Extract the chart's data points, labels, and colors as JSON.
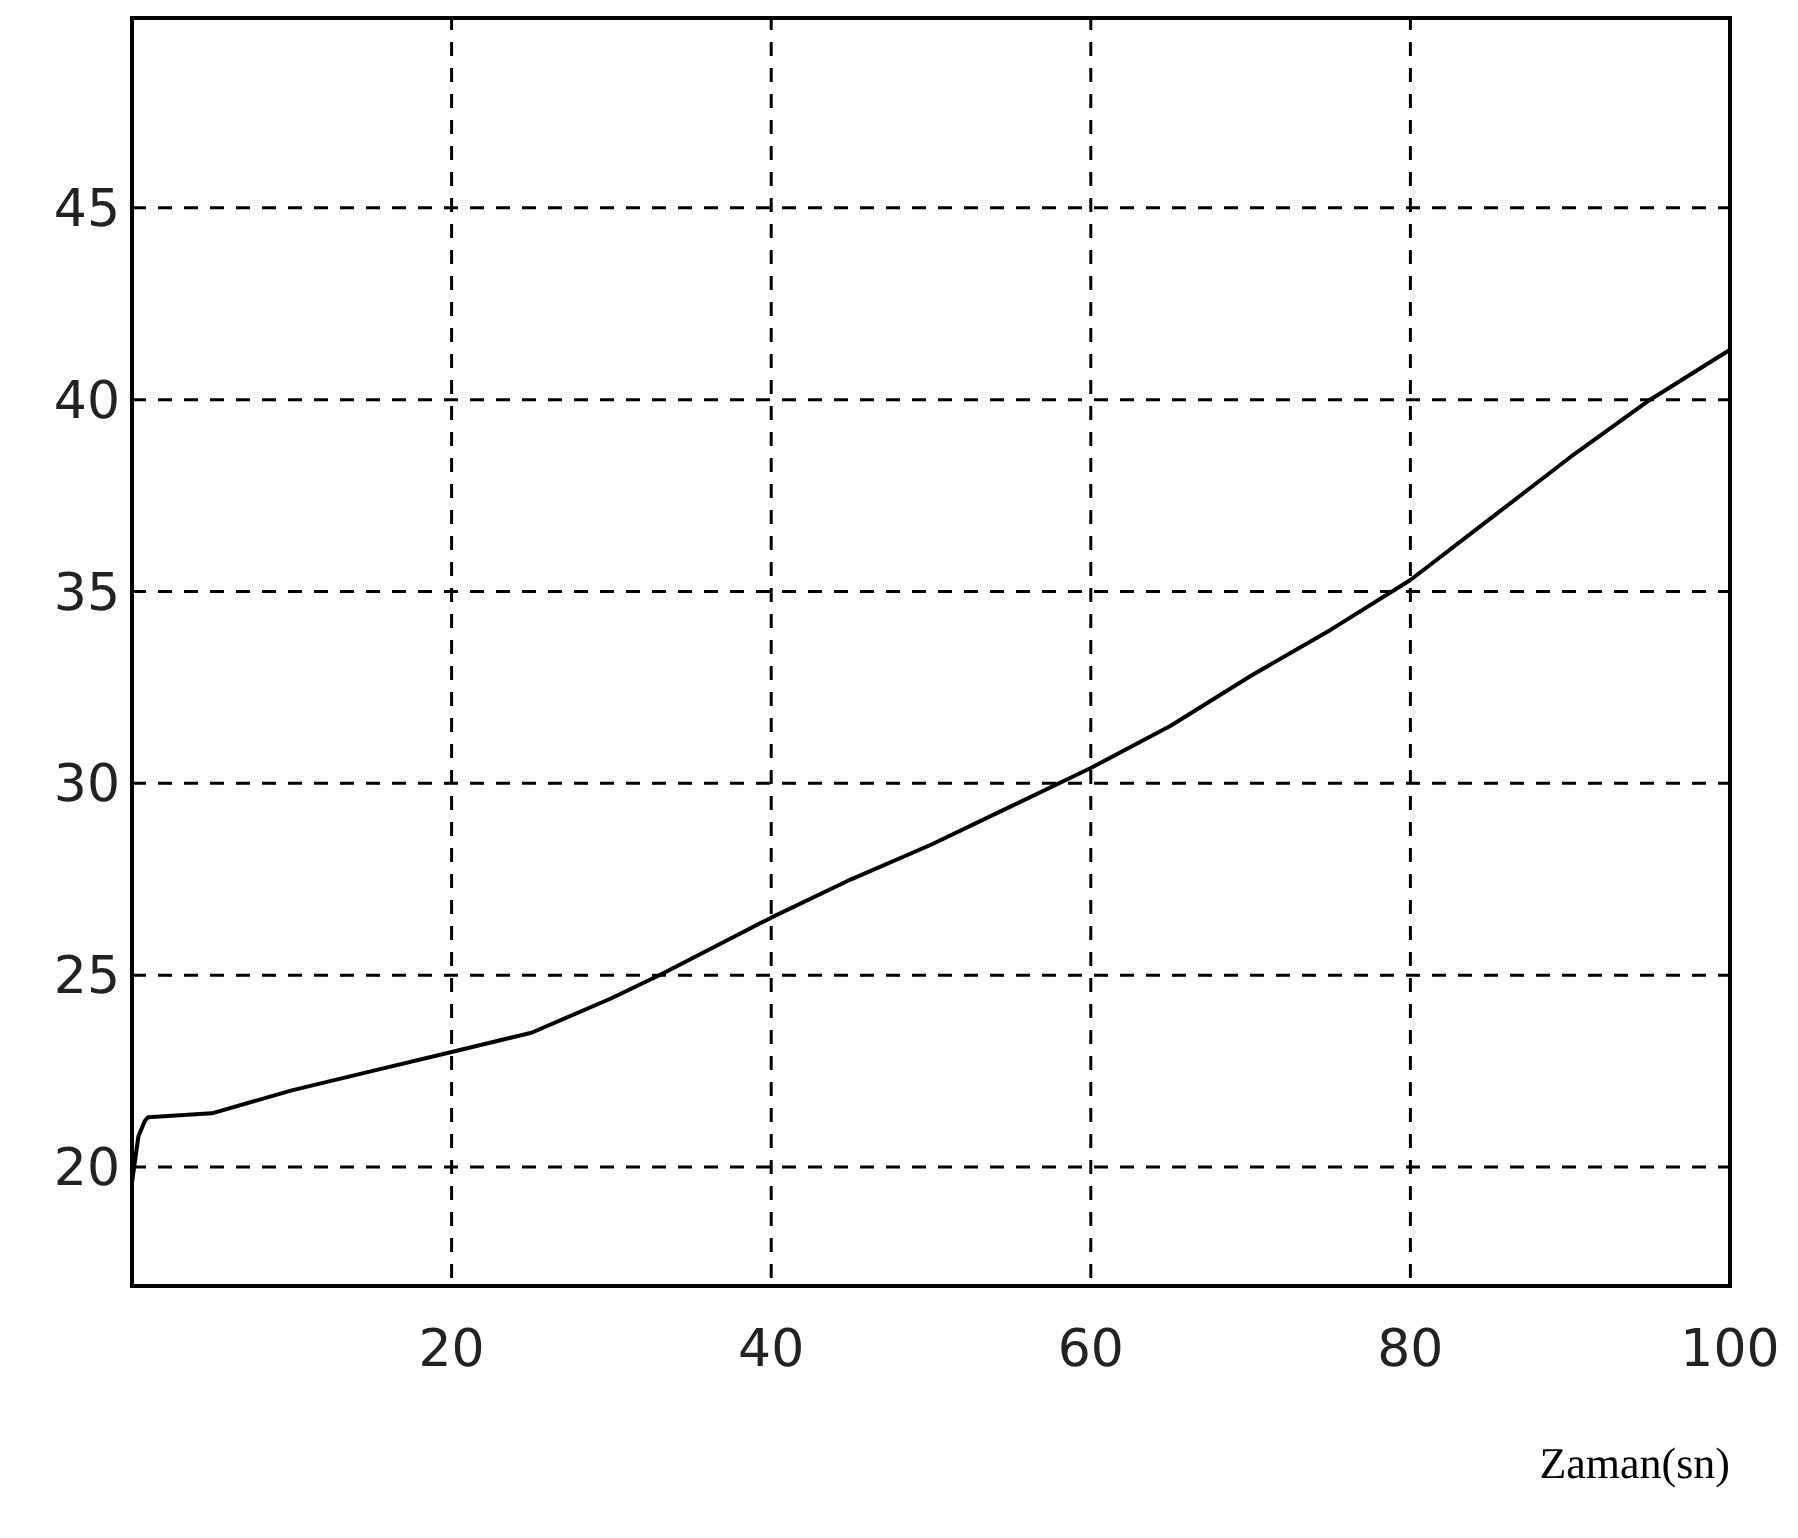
{
  "chart_data": {
    "type": "line",
    "xlabel": "Zaman(sn)",
    "xlim": [
      0,
      100
    ],
    "xticks": [
      20,
      40,
      60,
      80,
      100
    ],
    "ylim": [
      16.9,
      50
    ],
    "yticks": [
      20,
      25,
      30,
      35,
      40,
      45
    ],
    "grid": true,
    "series": [
      {
        "color": "#000000",
        "x": [
          0,
          0.4,
          0.8,
          1,
          5,
          10,
          15,
          20,
          25,
          30,
          33,
          40,
          45,
          50,
          55,
          60,
          65,
          70,
          75,
          80,
          85,
          90,
          95,
          100
        ],
        "values": [
          19.6,
          20.8,
          21.2,
          21.3,
          21.4,
          22,
          22.5,
          23,
          23.5,
          24.4,
          25,
          26.5,
          27.5,
          28.4,
          29.4,
          30.4,
          31.5,
          32.8,
          34,
          35.3,
          36.9,
          38.5,
          40,
          41.3
        ]
      }
    ]
  }
}
